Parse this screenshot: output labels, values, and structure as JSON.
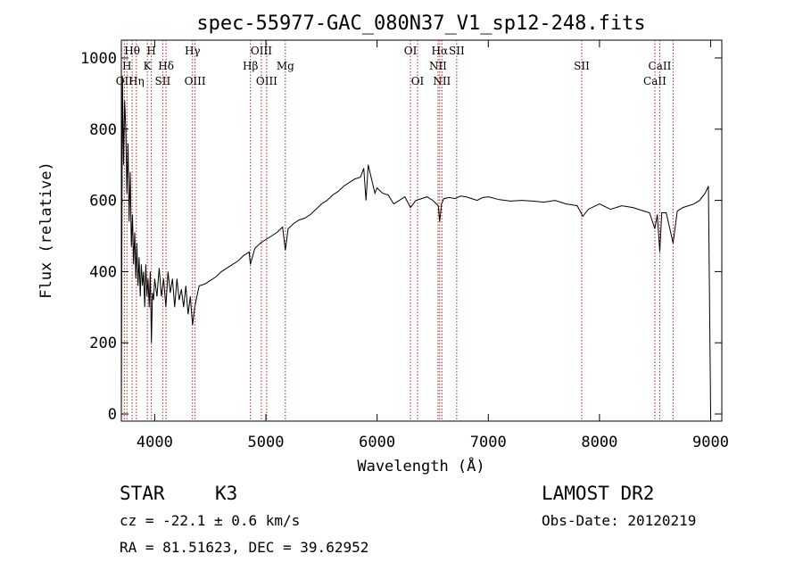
{
  "chart_data": {
    "type": "line",
    "title": "spec-55977-GAC_080N37_V1_sp12-248.fits",
    "xlabel": "Wavelength (Å)",
    "ylabel": "Flux (relative)",
    "xlim": [
      3700,
      9100
    ],
    "ylim": [
      -20,
      1050
    ],
    "x_ticks": [
      4000,
      5000,
      6000,
      7000,
      8000,
      9000
    ],
    "y_ticks": [
      0,
      200,
      400,
      600,
      800,
      1000
    ],
    "x_tick_labels": [
      "4000",
      "5000",
      "6000",
      "7000",
      "8000",
      "9000"
    ],
    "y_tick_labels": [
      "0",
      "200",
      "400",
      "600",
      "800",
      "1000"
    ],
    "grid": false,
    "spectral_lines": [
      {
        "label": "Hθ",
        "wavelength": 3797,
        "row": 0
      },
      {
        "label": "OII",
        "wavelength": 3727,
        "row": 2
      },
      {
        "label": "H",
        "wavelength": 3750,
        "row": 1
      },
      {
        "label": "Hη",
        "wavelength": 3835,
        "row": 2
      },
      {
        "label": "H",
        "wavelength": 3970,
        "row": 0
      },
      {
        "label": "K",
        "wavelength": 3934,
        "row": 1
      },
      {
        "label": "Hδ",
        "wavelength": 4102,
        "row": 1
      },
      {
        "label": "SII",
        "wavelength": 4072,
        "row": 2
      },
      {
        "label": "Hγ",
        "wavelength": 4340,
        "row": 0
      },
      {
        "label": "OIII",
        "wavelength": 4363,
        "row": 2
      },
      {
        "label": "OIII",
        "wavelength": 4959,
        "row": 0
      },
      {
        "label": "Hβ",
        "wavelength": 4861,
        "row": 1
      },
      {
        "label": "OIII",
        "wavelength": 5007,
        "row": 2
      },
      {
        "label": "Mg",
        "wavelength": 5175,
        "row": 1
      },
      {
        "label": "OI",
        "wavelength": 6300,
        "row": 0
      },
      {
        "label": "OI",
        "wavelength": 6364,
        "row": 2
      },
      {
        "label": "Hα",
        "wavelength": 6563,
        "row": 0
      },
      {
        "label": "NII",
        "wavelength": 6548,
        "row": 1
      },
      {
        "label": "NII",
        "wavelength": 6583,
        "row": 2
      },
      {
        "label": "SII",
        "wavelength": 6716,
        "row": 0
      },
      {
        "label": "SII",
        "wavelength": 7840,
        "row": 1
      },
      {
        "label": "CaII",
        "wavelength": 8542,
        "row": 1
      },
      {
        "label": "CaII",
        "wavelength": 8498,
        "row": 2
      },
      {
        "label": "CaII",
        "wavelength": 8662,
        "row": -1
      }
    ],
    "line_color": "#b22222",
    "spectrum_color": "#000000",
    "series": [
      {
        "x": [
          3700,
          3710,
          3720,
          3730,
          3740,
          3750,
          3760,
          3770,
          3780,
          3790,
          3800,
          3810,
          3820,
          3830,
          3840,
          3850,
          3860,
          3870,
          3880,
          3890,
          3900,
          3910,
          3920,
          3930,
          3940,
          3950,
          3960,
          3970,
          3980,
          3990,
          4000,
          4020,
          4040,
          4060,
          4080,
          4100,
          4120,
          4140,
          4160,
          4180,
          4200,
          4220,
          4240,
          4260,
          4280,
          4300,
          4320,
          4340,
          4360,
          4380,
          4400,
          4450,
          4500,
          4550,
          4600,
          4650,
          4700,
          4750,
          4800,
          4850,
          4860,
          4900,
          4950,
          5000,
          5050,
          5100,
          5150,
          5175,
          5200,
          5250,
          5300,
          5350,
          5400,
          5450,
          5500,
          5550,
          5600,
          5650,
          5700,
          5750,
          5800,
          5850,
          5880,
          5900,
          5920,
          5950,
          5980,
          6000,
          6050,
          6100,
          6150,
          6200,
          6250,
          6300,
          6350,
          6400,
          6450,
          6500,
          6550,
          6563,
          6580,
          6600,
          6650,
          6700,
          6750,
          6800,
          6850,
          6900,
          6950,
          7000,
          7100,
          7200,
          7300,
          7400,
          7500,
          7600,
          7700,
          7800,
          7850,
          7900,
          8000,
          8100,
          8200,
          8300,
          8400,
          8450,
          8498,
          8520,
          8542,
          8560,
          8600,
          8662,
          8700,
          8750,
          8800,
          8850,
          8900,
          8950,
          8980,
          9000
        ],
        "y": [
          0,
          950,
          700,
          880,
          800,
          620,
          760,
          540,
          680,
          470,
          560,
          420,
          510,
          380,
          480,
          360,
          440,
          330,
          420,
          360,
          400,
          300,
          420,
          330,
          380,
          300,
          400,
          200,
          340,
          320,
          380,
          330,
          410,
          330,
          380,
          300,
          400,
          340,
          380,
          300,
          380,
          320,
          350,
          300,
          360,
          280,
          330,
          250,
          300,
          330,
          360,
          365,
          375,
          385,
          400,
          410,
          420,
          430,
          445,
          455,
          420,
          465,
          480,
          490,
          500,
          510,
          525,
          460,
          520,
          535,
          545,
          550,
          560,
          575,
          590,
          600,
          615,
          625,
          640,
          650,
          660,
          665,
          690,
          600,
          700,
          660,
          620,
          635,
          620,
          615,
          590,
          600,
          610,
          580,
          600,
          605,
          610,
          600,
          585,
          540,
          590,
          605,
          608,
          605,
          612,
          610,
          605,
          600,
          608,
          610,
          602,
          598,
          600,
          598,
          595,
          600,
          590,
          585,
          555,
          575,
          590,
          575,
          585,
          580,
          570,
          565,
          520,
          560,
          455,
          565,
          565,
          480,
          570,
          580,
          585,
          590,
          600,
          620,
          640,
          0
        ]
      }
    ]
  },
  "info": {
    "object_class": "STAR",
    "subclass": "K3",
    "survey": "LAMOST DR2",
    "velocity": "cz = -22.1 ± 0.6 km/s",
    "obs_date": "Obs-Date: 20120219",
    "coords": "RA =  81.51623, DEC =  39.62952"
  }
}
